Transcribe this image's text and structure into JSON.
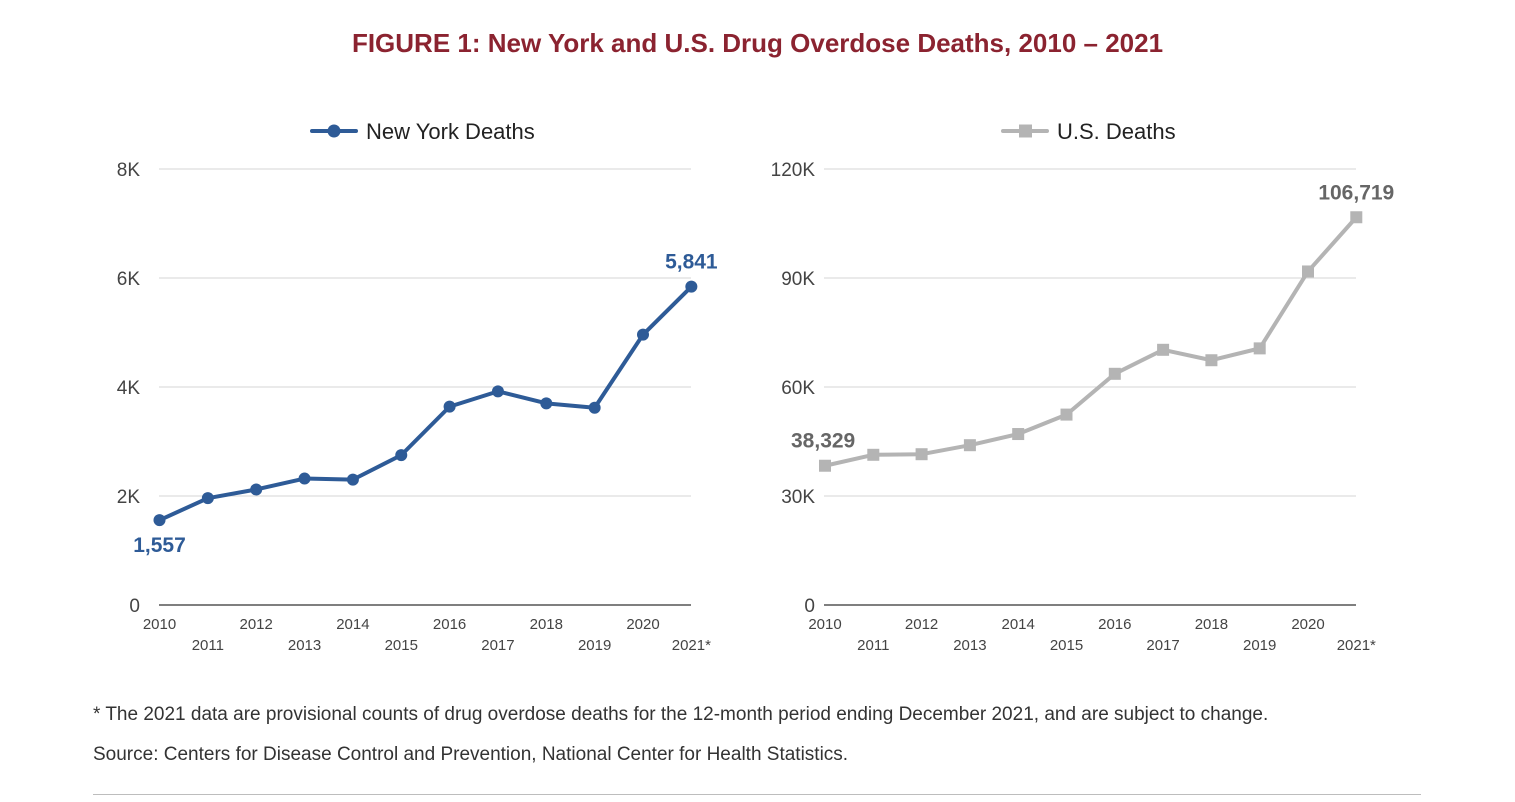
{
  "figure": {
    "title": "FIGURE 1: New York and U.S. Drug Overdose Deaths, 2010 – 2021",
    "title_color": "#8b2330"
  },
  "chart_data": [
    {
      "type": "line",
      "legend": "top-center",
      "grid": true,
      "categories": [
        "2010",
        "2011",
        "2012",
        "2013",
        "2014",
        "2015",
        "2016",
        "2017",
        "2018",
        "2019",
        "2020",
        "2021*"
      ],
      "ylim": [
        0,
        8000
      ],
      "yticks": [
        0,
        2000,
        4000,
        6000,
        8000
      ],
      "ytick_labels": [
        "0",
        "2K",
        "4K",
        "6K",
        "8K"
      ],
      "series": [
        {
          "name": "New York Deaths",
          "color": "#2e5b97",
          "marker": "circle",
          "values": [
            1557,
            1960,
            2120,
            2320,
            2300,
            2750,
            3640,
            3920,
            3700,
            3620,
            4960,
            5841
          ]
        }
      ],
      "data_labels": [
        {
          "index": 0,
          "text": "1,557"
        },
        {
          "index": 11,
          "text": "5,841"
        }
      ]
    },
    {
      "type": "line",
      "legend": "top-center",
      "grid": true,
      "categories": [
        "2010",
        "2011",
        "2012",
        "2013",
        "2014",
        "2015",
        "2016",
        "2017",
        "2018",
        "2019",
        "2020",
        "2021*"
      ],
      "ylim": [
        0,
        120000
      ],
      "yticks": [
        0,
        30000,
        60000,
        90000,
        120000
      ],
      "ytick_labels": [
        "0",
        "30K",
        "60K",
        "90K",
        "120K"
      ],
      "series": [
        {
          "name": "U.S. Deaths",
          "color": "#b4b4b4",
          "marker": "square",
          "values": [
            38329,
            41340,
            41502,
            43982,
            47055,
            52404,
            63632,
            70237,
            67367,
            70630,
            91799,
            106719
          ]
        }
      ],
      "data_labels": [
        {
          "index": 0,
          "text": "38,329"
        },
        {
          "index": 11,
          "text": "106,719"
        }
      ],
      "label_color": "#666666"
    }
  ],
  "notes": {
    "footnote": "* The 2021 data are provisional counts of drug overdose deaths for the 12-month period ending December 2021, and are subject to change.",
    "source": "Source: Centers for Disease Control and Prevention, National Center for Health Statistics."
  }
}
